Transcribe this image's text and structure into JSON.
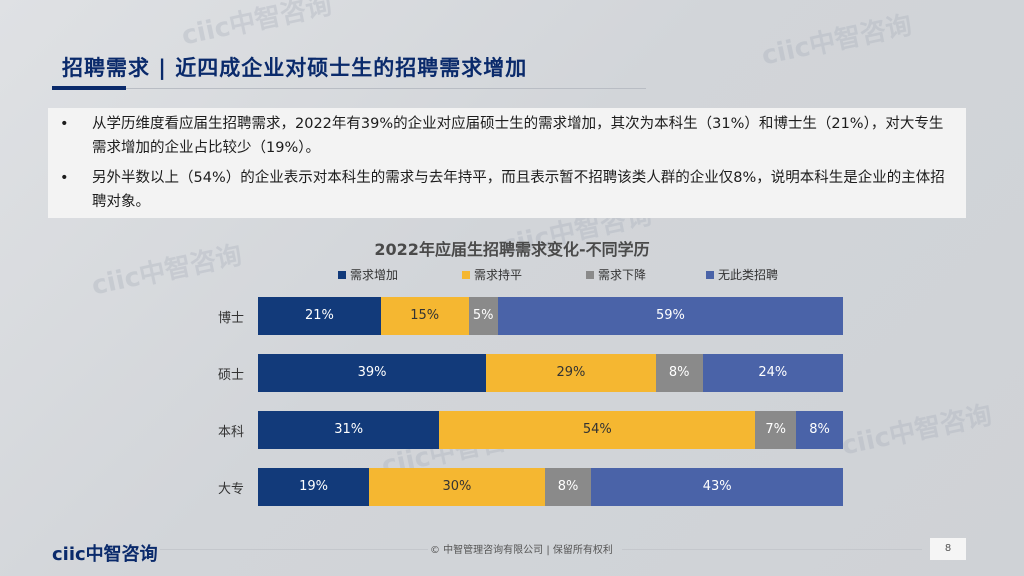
{
  "header": {
    "title": "招聘需求 | 近四成企业对硕士生的招聘需求增加"
  },
  "bullets": [
    {
      "marker": "•",
      "text": "从学历维度看应届生招聘需求，2022年有39%的企业对应届硕士生的需求增加，其次为本科生（31%）和博士生（21%），对大专生需求增加的企业占比较少（19%）。"
    },
    {
      "marker": "•",
      "text": "另外半数以上（54%）的企业表示对本科生的需求与去年持平，而且表示暂不招聘该类人群的企业仅8%，说明本科生是企业的主体招聘对象。"
    }
  ],
  "chart_data": {
    "type": "bar",
    "orientation": "horizontal",
    "stacked": true,
    "normalized": true,
    "title": "2022年应届生招聘需求变化-不同学历",
    "categories": [
      "博士",
      "硕士",
      "本科",
      "大专"
    ],
    "series": [
      {
        "name": "需求增加",
        "values": [
          21,
          39,
          31,
          19
        ],
        "color": "#123a7a",
        "label_color": "#ffffff"
      },
      {
        "name": "需求持平",
        "values": [
          15,
          29,
          54,
          30
        ],
        "color": "#f5b731",
        "label_color": "#333333"
      },
      {
        "name": "需求下降",
        "values": [
          5,
          8,
          7,
          8
        ],
        "color": "#8a8a8a",
        "label_color": "#ffffff"
      },
      {
        "name": "无此类招聘",
        "values": [
          59,
          24,
          8,
          43
        ],
        "color": "#4a63a8",
        "label_color": "#ffffff"
      }
    ],
    "value_suffix": "%",
    "legend_position": "top",
    "grid": false
  },
  "footer": {
    "logo": "ciic中智咨询",
    "copyright": "© 中智管理咨询有限公司 | 保留所有权利",
    "page_number": "8"
  },
  "watermark": "ciic中智咨询"
}
